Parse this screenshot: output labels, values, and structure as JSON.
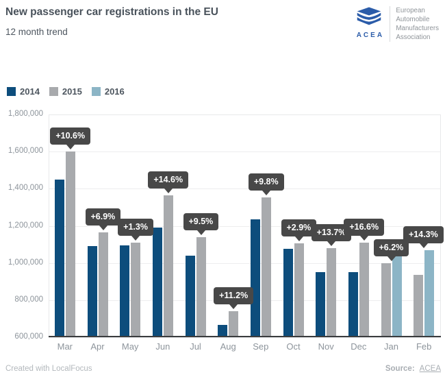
{
  "header": {
    "title": "New passenger car registrations in the EU",
    "subtitle": "12 month trend"
  },
  "logo": {
    "brand": "ACEA",
    "brand_color": "#2b5ca9",
    "org_lines": [
      "European",
      "Automobile",
      "Manufacturers",
      "Association"
    ]
  },
  "footer": {
    "credit": "Created with LocalFocus",
    "source_label": "Source:",
    "source_link": "ACEA"
  },
  "colors": {
    "tooltip_bg": "#484848",
    "tooltip_text": "#ffffff",
    "axis_label": "#8d949b",
    "gridline": "#ededee"
  },
  "chart_data": {
    "type": "bar",
    "title": "New passenger car registrations in the EU",
    "subtitle": "12 month trend",
    "categories": [
      "Mar",
      "Apr",
      "May",
      "Jun",
      "Jul",
      "Aug",
      "Sep",
      "Oct",
      "Nov",
      "Dec",
      "Jan",
      "Feb"
    ],
    "series": [
      {
        "name": "2014",
        "color": "#0d4d7c",
        "values": [
          1450000,
          1090000,
          1095000,
          1190000,
          1040000,
          665000,
          1235000,
          1075000,
          950000,
          950000,
          null,
          null
        ]
      },
      {
        "name": "2015",
        "color": "#a8aaad",
        "values": [
          1600000,
          1165000,
          1110000,
          1365000,
          1140000,
          740000,
          1355000,
          1105000,
          1080000,
          1110000,
          1000000,
          935000
        ]
      },
      {
        "name": "2016",
        "color": "#8cb5c6",
        "values": [
          null,
          null,
          null,
          null,
          null,
          null,
          null,
          null,
          null,
          null,
          1062000,
          1069000
        ]
      }
    ],
    "pct_change_labels": [
      "+10.6%",
      "+6.9%",
      "+1.3%",
      "+14.6%",
      "+9.5%",
      "+11.2%",
      "+9.8%",
      "+2.9%",
      "+13.7%",
      "+16.6%",
      "+6.2%",
      "+14.3%"
    ],
    "ylim": [
      600000,
      1800000
    ],
    "ytick_labels": [
      "600,000",
      "800,000",
      "1,000,000",
      "1,200,000",
      "1,400,000",
      "1,600,000",
      "1,800,000"
    ],
    "ytick_values": [
      600000,
      800000,
      1000000,
      1200000,
      1400000,
      1600000,
      1800000
    ],
    "grid": "horizontal",
    "legend_position": "top-left"
  }
}
